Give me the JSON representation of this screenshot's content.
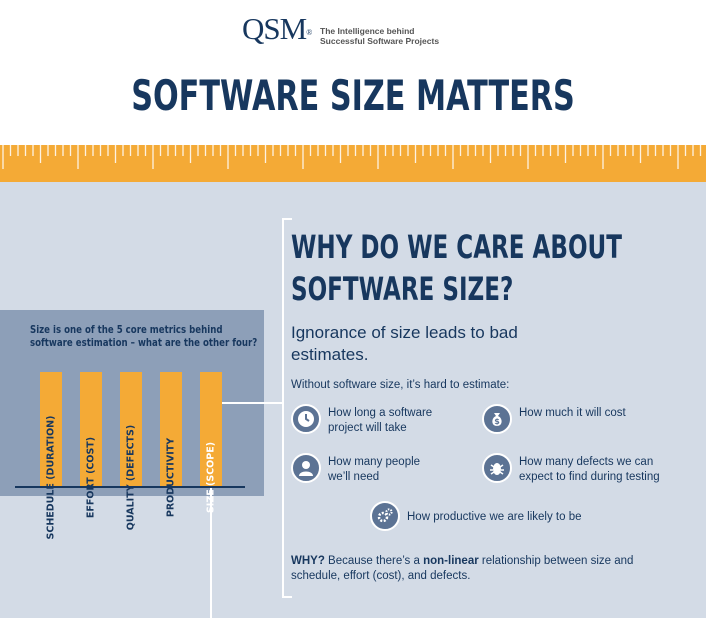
{
  "header": {
    "logo_text": "QSM",
    "logo_registered": "®",
    "tagline_line1": "The Intelligence behind",
    "tagline_line2": "Successful Software Projects",
    "title": "SOFTWARE SIZE MATTERS"
  },
  "left": {
    "caption": "Size is one of the 5 core metrics behind software estimation – what are the other four?",
    "bars": [
      {
        "label": "SCHEDULE (DURATION)"
      },
      {
        "label": "EFFORT (COST)"
      },
      {
        "label": "QUALITY (DEFECTS)"
      },
      {
        "label": "PRODUCTIVITY"
      },
      {
        "label": "SIZE (SCOPE)"
      }
    ]
  },
  "right": {
    "title_line1": "WHY DO WE CARE ABOUT",
    "title_line2": "SOFTWARE SIZE?",
    "subtitle": "Ignorance of size leads to bad estimates.",
    "intro": "Without software size, it’s hard to estimate:",
    "items": [
      {
        "icon": "clock-icon",
        "text1": "How long a software",
        "text2": "project will take"
      },
      {
        "icon": "money-bag-icon",
        "text1": "How much it will cost",
        "text2": ""
      },
      {
        "icon": "person-icon",
        "text1": "How many people",
        "text2": "we’ll need"
      },
      {
        "icon": "bug-icon",
        "text1": "How many defects we can",
        "text2": "expect to find during testing"
      },
      {
        "icon": "gears-icon",
        "text1": "How productive we are likely to be",
        "text2": ""
      }
    ],
    "why_label": "WHY?",
    "why_text_a": " Because there’s a ",
    "why_bold": "non-linear",
    "why_text_b": " relationship between size and schedule, effort (cost), and defects."
  },
  "colors": {
    "navy": "#17375e",
    "orange": "#f4aa36",
    "panel": "#d3dbe6",
    "box": "#8d9fb8"
  }
}
